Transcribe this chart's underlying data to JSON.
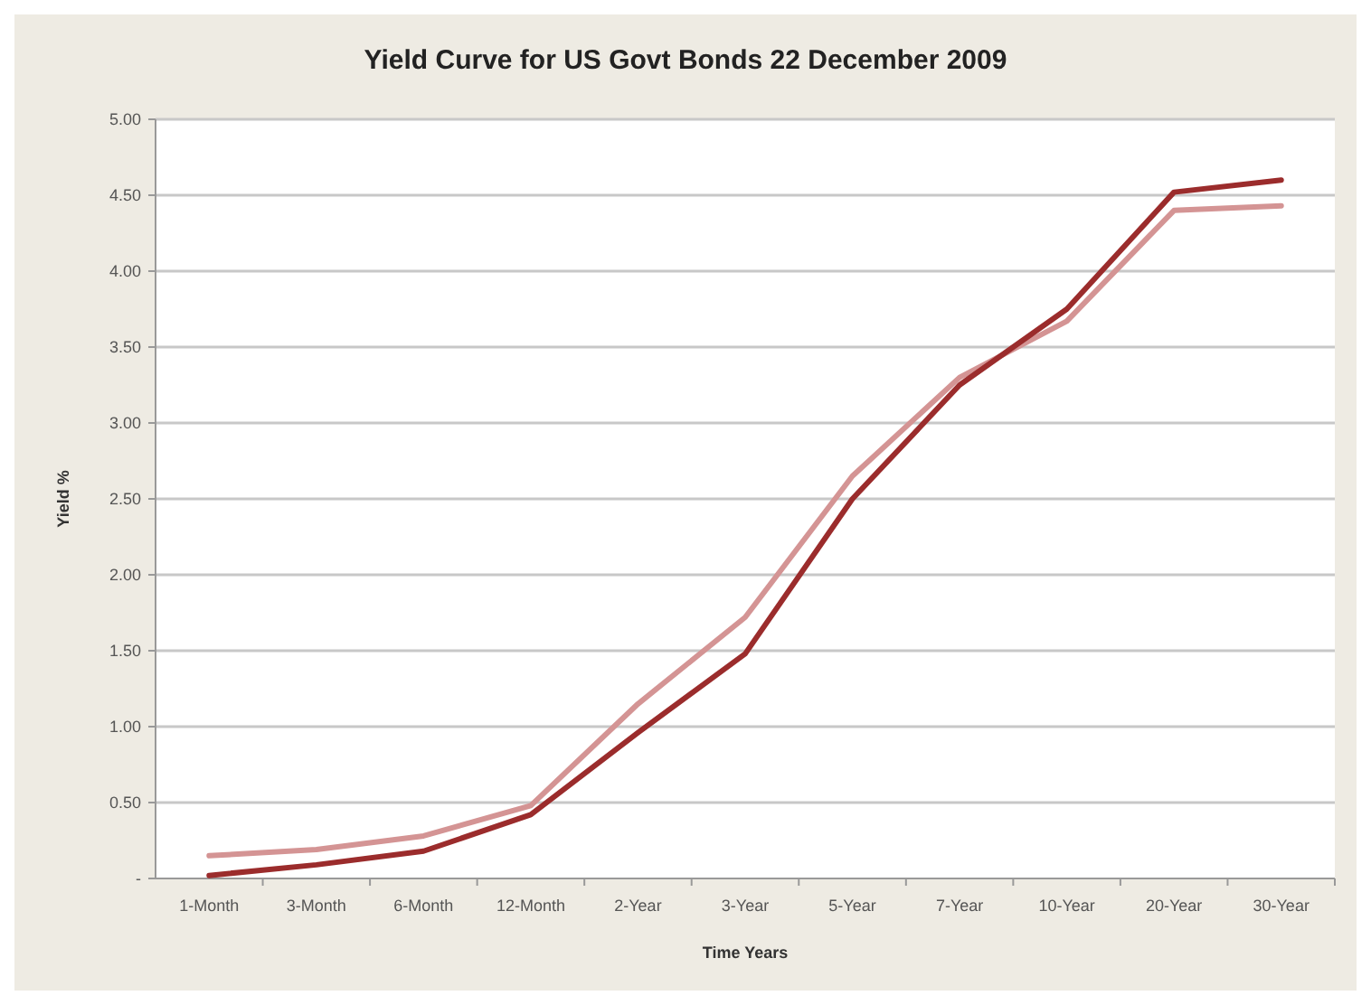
{
  "chart_data": {
    "type": "line",
    "title": "Yield Curve for US Govt Bonds 22 December 2009",
    "xlabel": "Time Years",
    "ylabel": "Yield %",
    "categories": [
      "1-Month",
      "3-Month",
      "6-Month",
      "12-Month",
      "2-Year",
      "3-Year",
      "5-Year",
      "7-Year",
      "10-Year",
      "20-Year",
      "30-Year"
    ],
    "series": [
      {
        "color": "#d49494",
        "values": [
          0.15,
          0.19,
          0.28,
          0.48,
          1.15,
          1.72,
          2.65,
          3.3,
          3.67,
          4.4,
          4.43
        ]
      },
      {
        "color": "#9b2c2c",
        "values": [
          0.02,
          0.09,
          0.18,
          0.42,
          0.96,
          1.48,
          2.5,
          3.25,
          3.75,
          4.52,
          4.6
        ]
      }
    ],
    "ylim": [
      0,
      5
    ],
    "yticks": [
      {
        "value": 0,
        "label": "-"
      },
      {
        "value": 0.5,
        "label": "0.50"
      },
      {
        "value": 1,
        "label": "1.00"
      },
      {
        "value": 1.5,
        "label": "1.50"
      },
      {
        "value": 2,
        "label": "2.00"
      },
      {
        "value": 2.5,
        "label": "2.50"
      },
      {
        "value": 3,
        "label": "3.00"
      },
      {
        "value": 3.5,
        "label": "3.50"
      },
      {
        "value": 4,
        "label": "4.00"
      },
      {
        "value": 4.5,
        "label": "4.50"
      },
      {
        "value": 5,
        "label": "5.00"
      }
    ],
    "grid": "y",
    "marker": "none",
    "line_style": "solid"
  }
}
